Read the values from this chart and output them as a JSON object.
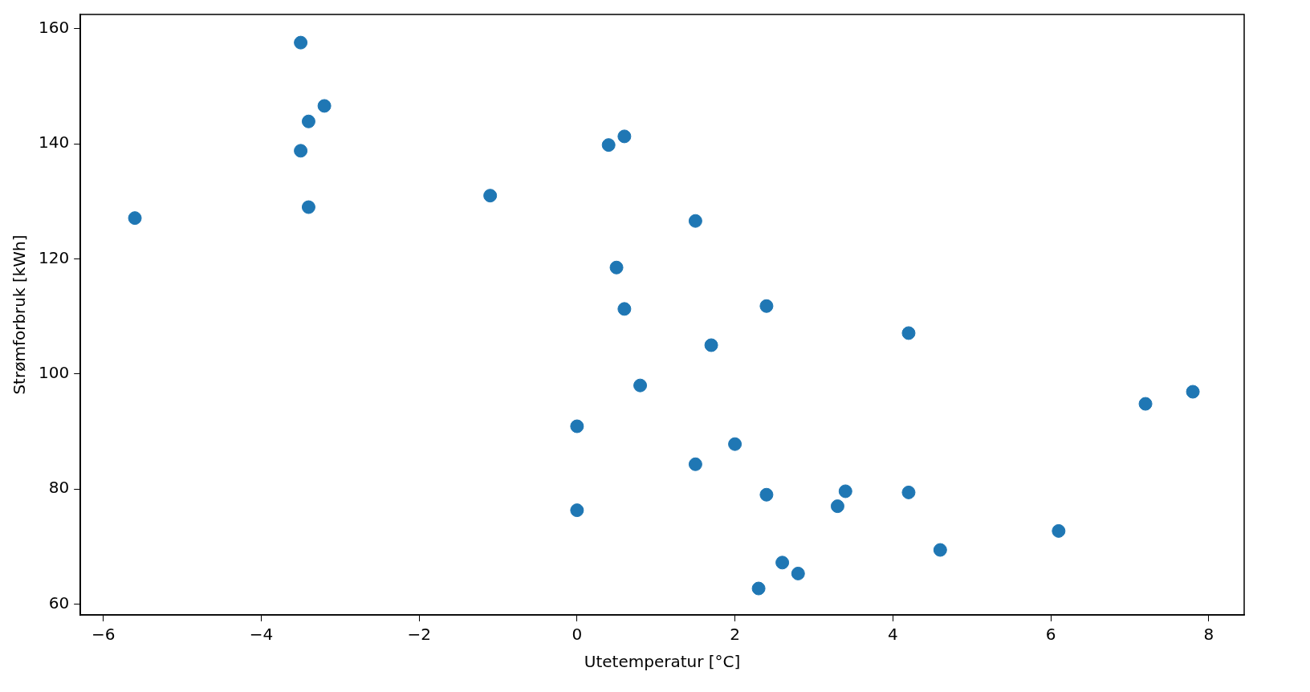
{
  "chart_data": {
    "type": "scatter",
    "xlabel": "Utetemperatur [°C]",
    "ylabel": "Strømforbruk [kWh]",
    "x": [
      -3.5,
      -3.2,
      -3.4,
      -3.5,
      -3.4,
      -5.6,
      -1.1,
      0.4,
      0.6,
      1.5,
      0.5,
      0.6,
      2.4,
      1.7,
      4.2,
      0.8,
      0.0,
      2.0,
      1.5,
      0.0,
      2.4,
      3.4,
      3.3,
      4.2,
      6.1,
      4.6,
      2.6,
      2.8,
      2.3,
      7.2,
      7.8
    ],
    "values": [
      157.6,
      146.6,
      143.9,
      138.8,
      129.0,
      127.1,
      131.0,
      139.8,
      141.3,
      126.6,
      118.5,
      111.3,
      111.8,
      105.0,
      107.1,
      98.0,
      90.9,
      87.8,
      84.3,
      76.3,
      79.0,
      79.6,
      77.0,
      79.4,
      72.7,
      69.4,
      67.2,
      65.3,
      62.7,
      94.8,
      96.9
    ],
    "color": "#1f77b4",
    "marker": "circle",
    "grid": false,
    "xlim": [
      -6.29,
      8.45
    ],
    "xticks": [
      {
        "value": -6,
        "label": "−6"
      },
      {
        "value": -4,
        "label": "−4"
      },
      {
        "value": -2,
        "label": "−2"
      },
      0,
      2,
      4,
      6,
      8
    ],
    "ylim": [
      58.1,
      162.5
    ],
    "yticks": [
      60,
      80,
      100,
      120,
      140,
      160
    ]
  }
}
